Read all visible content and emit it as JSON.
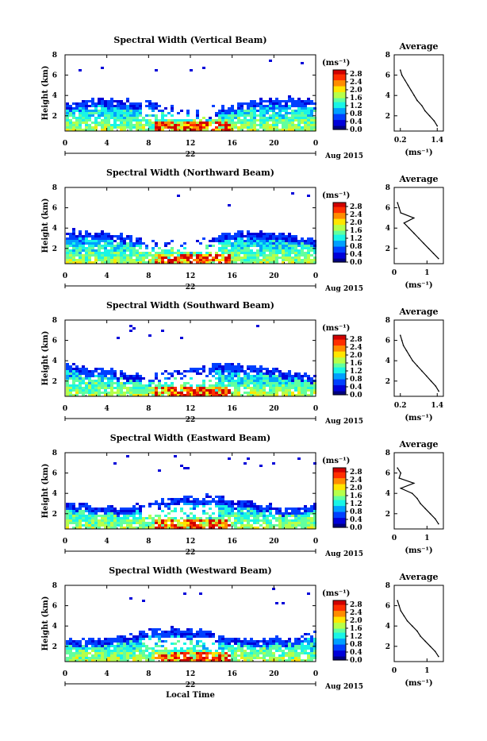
{
  "figure": {
    "xlabel": "Local Time",
    "date_label": "Aug 2015",
    "day_label": "22",
    "ylabel": "Height (km)",
    "cbar_unit": "(ms⁻¹)",
    "avg_title": "Average",
    "avg_xlabel": "(ms⁻¹)"
  },
  "chart_data": [
    {
      "type": "heatmap",
      "title": "Spectral Width (Vertical Beam)",
      "xlabel": "Local Time",
      "ylabel": "Height (km)",
      "x_ticks": [
        "0",
        "4",
        "8",
        "12",
        "16",
        "20",
        "0"
      ],
      "y_ticks": [
        "2",
        "4",
        "6",
        "8"
      ],
      "xlim": [
        0,
        24
      ],
      "ylim": [
        0.5,
        8
      ],
      "day": "22",
      "date": "Aug 2015",
      "colorbar": {
        "unit": "(ms⁻¹)",
        "ticks": [
          "0.0",
          "0.4",
          "0.8",
          "1.2",
          "1.6",
          "2.0",
          "2.4",
          "2.8"
        ],
        "range": [
          0,
          3.0
        ]
      },
      "profile": {
        "title": "Average",
        "xlabel": "(ms⁻¹)",
        "x_ticks": [
          "0.2",
          "1.4"
        ],
        "xlim": [
          0,
          1.6
        ],
        "y_ticks": [
          "2",
          "4",
          "6",
          "8"
        ],
        "ylim": [
          0.5,
          8
        ],
        "heights": [
          1.0,
          1.5,
          2.0,
          2.5,
          3.0,
          3.5,
          4.0,
          4.5,
          5.0,
          5.5,
          6.0,
          6.5
        ],
        "values": [
          1.4,
          1.3,
          1.15,
          1.0,
          0.9,
          0.75,
          0.65,
          0.55,
          0.45,
          0.35,
          0.25,
          0.2
        ]
      }
    },
    {
      "type": "heatmap",
      "title": "Spectral Width (Northward Beam)",
      "xlabel": "Local Time",
      "ylabel": "Height (km)",
      "x_ticks": [
        "0",
        "4",
        "8",
        "12",
        "16",
        "20",
        "0"
      ],
      "y_ticks": [
        "2",
        "4",
        "6",
        "8"
      ],
      "xlim": [
        0,
        24
      ],
      "ylim": [
        0.5,
        8
      ],
      "day": "22",
      "date": "Aug 2015",
      "colorbar": {
        "unit": "(ms⁻¹)",
        "ticks": [
          "0.0",
          "0.4",
          "0.8",
          "1.2",
          "1.6",
          "2.0",
          "2.4",
          "2.8"
        ],
        "range": [
          0,
          3.0
        ]
      },
      "profile": {
        "title": "Average",
        "xlabel": "(ms⁻¹)",
        "x_ticks": [
          "0",
          "1"
        ],
        "xlim": [
          0,
          1.5
        ],
        "y_ticks": [
          "2",
          "4",
          "6",
          "8"
        ],
        "ylim": [
          0.5,
          8
        ],
        "heights": [
          1.0,
          1.5,
          2.0,
          2.5,
          3.0,
          3.5,
          4.0,
          4.5,
          5.0,
          5.5,
          6.0,
          6.5
        ],
        "values": [
          1.35,
          1.2,
          1.05,
          0.9,
          0.75,
          0.6,
          0.45,
          0.3,
          0.6,
          0.2,
          0.15,
          0.1
        ]
      }
    },
    {
      "type": "heatmap",
      "title": "Spectral Width (Southward Beam)",
      "xlabel": "Local Time",
      "ylabel": "Height (km)",
      "x_ticks": [
        "0",
        "4",
        "8",
        "12",
        "16",
        "20",
        "0"
      ],
      "y_ticks": [
        "2",
        "4",
        "6",
        "8"
      ],
      "xlim": [
        0,
        24
      ],
      "ylim": [
        0.5,
        8
      ],
      "day": "22",
      "date": "Aug 2015",
      "colorbar": {
        "unit": "(ms⁻¹)",
        "ticks": [
          "0.0",
          "0.4",
          "0.8",
          "1.2",
          "1.6",
          "2.0",
          "2.4",
          "2.8"
        ],
        "range": [
          0,
          3.0
        ]
      },
      "profile": {
        "title": "Average",
        "xlabel": "(ms⁻¹)",
        "x_ticks": [
          "0.2",
          "1.4"
        ],
        "xlim": [
          0,
          1.6
        ],
        "y_ticks": [
          "2",
          "4",
          "6",
          "8"
        ],
        "ylim": [
          0.5,
          8
        ],
        "heights": [
          1.0,
          1.5,
          2.0,
          2.5,
          3.0,
          3.5,
          4.0,
          4.5,
          5.0,
          5.5,
          6.0,
          6.5
        ],
        "values": [
          1.45,
          1.35,
          1.2,
          1.05,
          0.9,
          0.75,
          0.6,
          0.5,
          0.4,
          0.3,
          0.25,
          0.2
        ]
      }
    },
    {
      "type": "heatmap",
      "title": "Spectral Width (Eastward Beam)",
      "xlabel": "Local Time",
      "ylabel": "Height (km)",
      "x_ticks": [
        "0",
        "4",
        "8",
        "12",
        "16",
        "20",
        "0"
      ],
      "y_ticks": [
        "2",
        "4",
        "6",
        "8"
      ],
      "xlim": [
        0,
        24
      ],
      "ylim": [
        0.5,
        8
      ],
      "day": "22",
      "date": "Aug 2015",
      "colorbar": {
        "unit": "(ms⁻¹)",
        "ticks": [
          "0.0",
          "0.4",
          "0.8",
          "1.2",
          "1.6",
          "2.0",
          "2.4",
          "2.8"
        ],
        "range": [
          0,
          3.0
        ]
      },
      "profile": {
        "title": "Average",
        "xlabel": "(ms⁻¹)",
        "x_ticks": [
          "0",
          "1"
        ],
        "xlim": [
          0,
          1.5
        ],
        "y_ticks": [
          "2",
          "4",
          "6",
          "8"
        ],
        "ylim": [
          0.5,
          8
        ],
        "heights": [
          1.0,
          1.5,
          2.0,
          2.5,
          3.0,
          3.5,
          4.0,
          4.5,
          5.0,
          5.5,
          6.0,
          6.5
        ],
        "values": [
          1.35,
          1.25,
          1.1,
          0.95,
          0.8,
          0.7,
          0.55,
          0.2,
          0.6,
          0.15,
          0.2,
          0.1
        ]
      }
    },
    {
      "type": "heatmap",
      "title": "Spectral Width (Westward Beam)",
      "xlabel": "Local Time",
      "ylabel": "Height (km)",
      "x_ticks": [
        "0",
        "4",
        "8",
        "12",
        "16",
        "20",
        "0"
      ],
      "y_ticks": [
        "2",
        "4",
        "6",
        "8"
      ],
      "xlim": [
        0,
        24
      ],
      "ylim": [
        0.5,
        8
      ],
      "day": "22",
      "date": "Aug 2015",
      "colorbar": {
        "unit": "(ms⁻¹)",
        "ticks": [
          "0.0",
          "0.4",
          "0.8",
          "1.2",
          "1.6",
          "2.0",
          "2.4",
          "2.8"
        ],
        "range": [
          0,
          3.0
        ]
      },
      "profile": {
        "title": "Average",
        "xlabel": "(ms⁻¹)",
        "x_ticks": [
          "0",
          "1"
        ],
        "xlim": [
          0,
          1.5
        ],
        "y_ticks": [
          "2",
          "4",
          "6",
          "8"
        ],
        "ylim": [
          0.5,
          8
        ],
        "heights": [
          1.0,
          1.5,
          2.0,
          2.5,
          3.0,
          3.5,
          4.0,
          4.5,
          5.0,
          5.5,
          6.0,
          6.5
        ],
        "values": [
          1.35,
          1.25,
          1.1,
          0.95,
          0.8,
          0.7,
          0.55,
          0.4,
          0.3,
          0.2,
          0.15,
          0.1
        ]
      }
    }
  ]
}
